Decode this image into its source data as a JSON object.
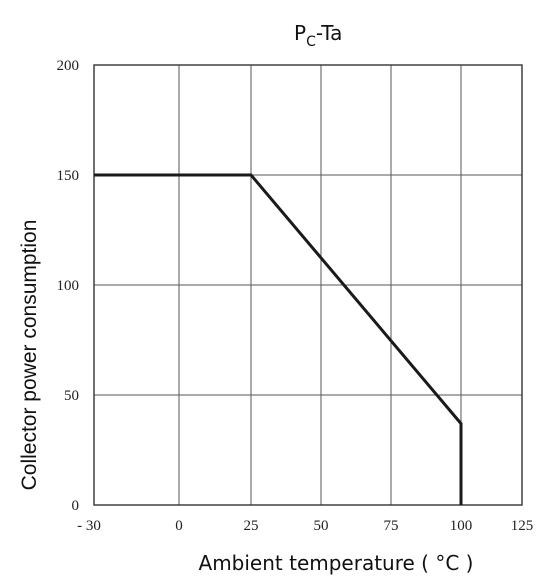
{
  "chart_data": {
    "type": "line",
    "title": {
      "main": "P",
      "sub": "C",
      "rest": "-Ta"
    },
    "xlabel": "Ambient temperature ( °C )",
    "ylabel": "Collector power consumption",
    "x_ticks": [
      "- 30",
      "0",
      "25",
      "50",
      "75",
      "100",
      "125"
    ],
    "y_ticks": [
      "0",
      "50",
      "100",
      "150",
      "200"
    ],
    "ylim": [
      0,
      200
    ],
    "grid": true,
    "series": [
      {
        "points": [
          [
            -30,
            150
          ],
          [
            25,
            150
          ],
          [
            100,
            37
          ],
          [
            100,
            0
          ]
        ]
      }
    ]
  }
}
